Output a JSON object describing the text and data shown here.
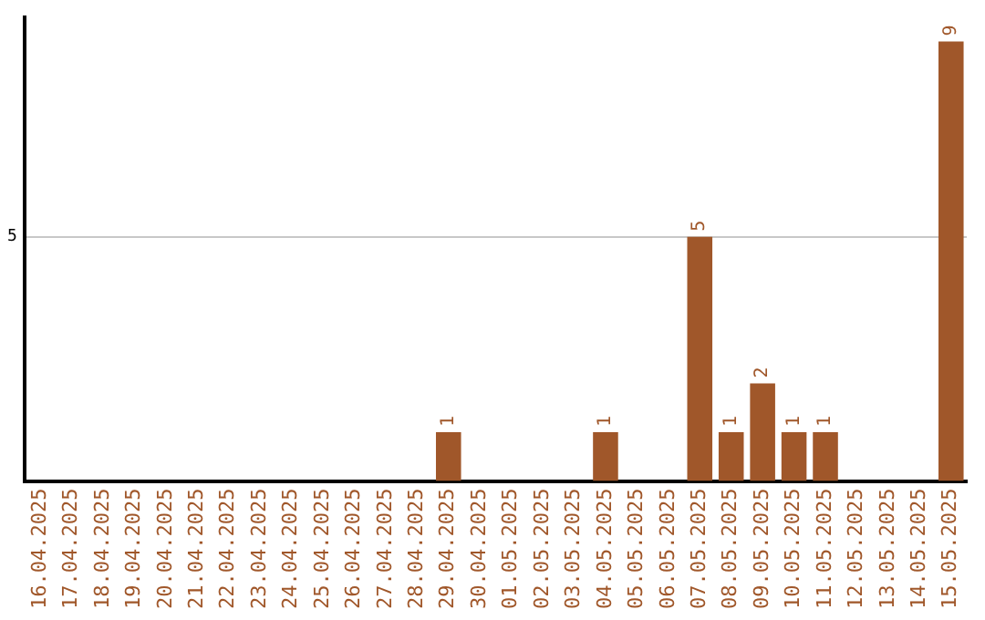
{
  "chart_data": {
    "type": "bar",
    "categories": [
      "16.04.2025",
      "17.04.2025",
      "18.04.2025",
      "19.04.2025",
      "20.04.2025",
      "21.04.2025",
      "22.04.2025",
      "23.04.2025",
      "24.04.2025",
      "25.04.2025",
      "26.04.2025",
      "27.04.2025",
      "28.04.2025",
      "29.04.2025",
      "30.04.2025",
      "01.05.2025",
      "02.05.2025",
      "03.05.2025",
      "04.05.2025",
      "05.05.2025",
      "06.05.2025",
      "07.05.2025",
      "08.05.2025",
      "09.05.2025",
      "10.05.2025",
      "11.05.2025",
      "12.05.2025",
      "13.05.2025",
      "14.05.2025",
      "15.05.2025"
    ],
    "values": [
      null,
      null,
      null,
      null,
      null,
      null,
      null,
      null,
      null,
      null,
      null,
      null,
      null,
      1,
      null,
      null,
      null,
      null,
      1,
      null,
      null,
      5,
      1,
      2,
      1,
      1,
      null,
      null,
      null,
      9
    ],
    "data_labels": true,
    "ylim": [
      0,
      9.5
    ],
    "yticks": [
      5
    ],
    "grid": "y",
    "color": "#a0572a",
    "legend": false
  }
}
